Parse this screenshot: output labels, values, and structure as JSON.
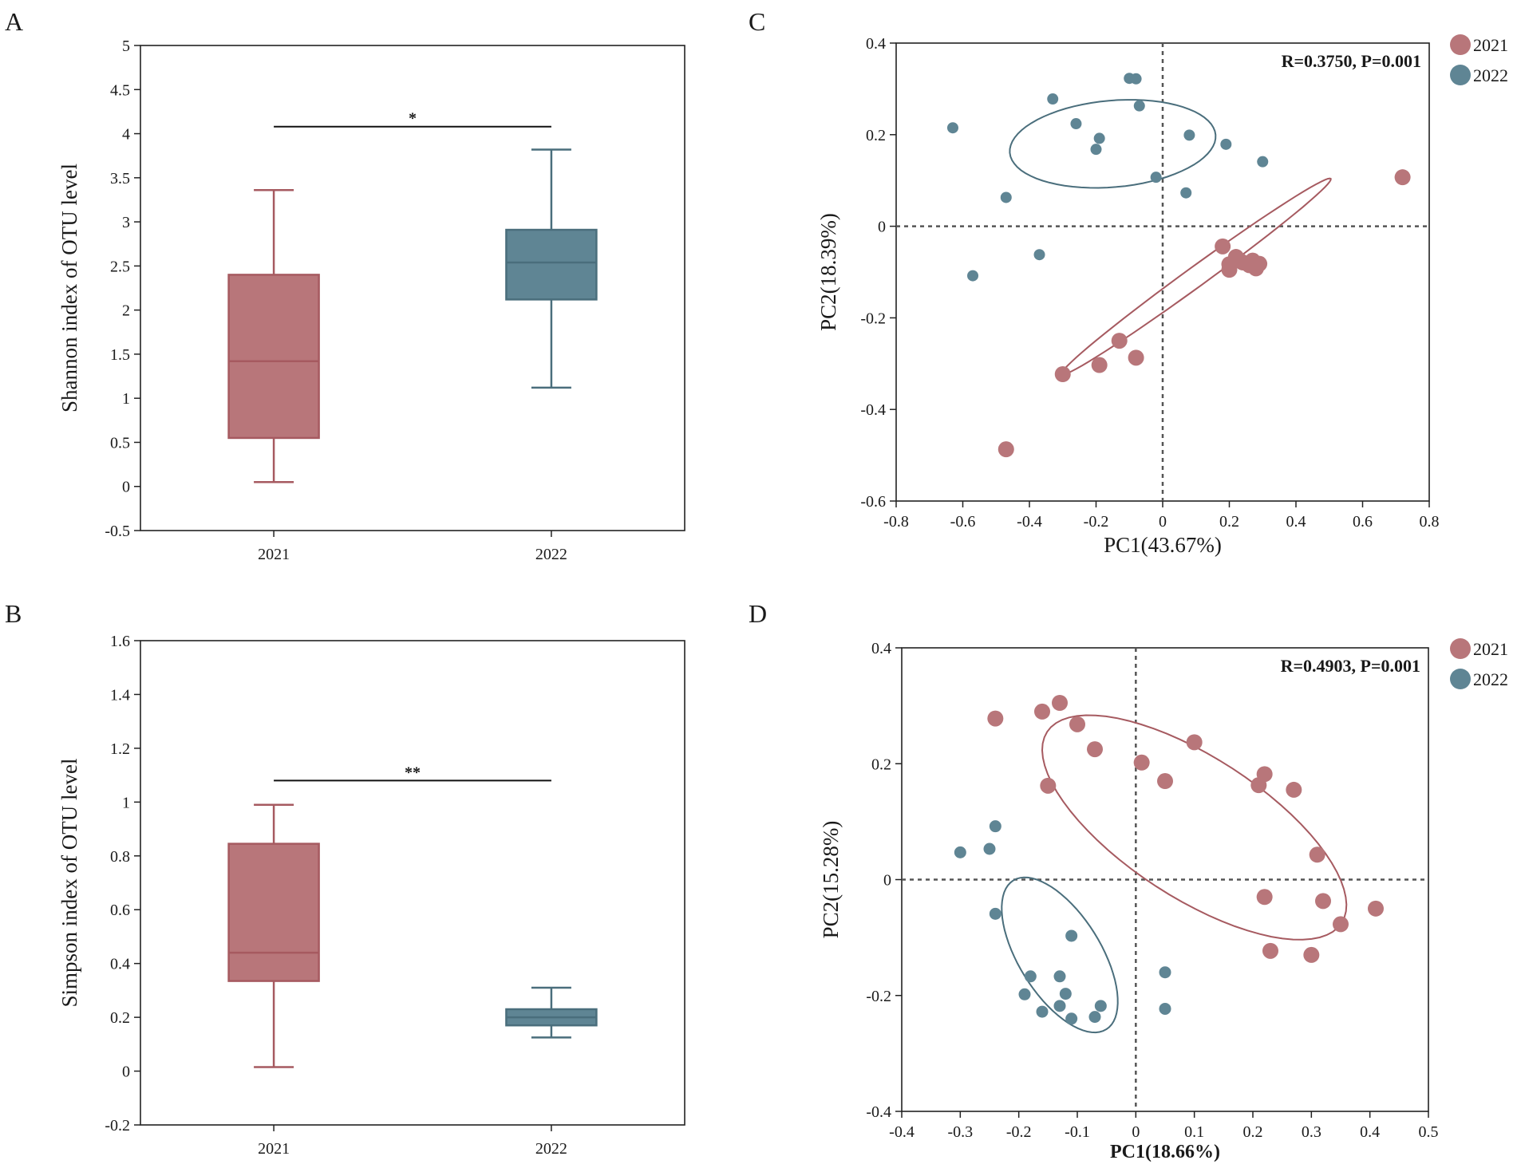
{
  "colors": {
    "group_2021": "#b8767a",
    "group_2021_stroke": "#a65a60",
    "group_2022": "#5f8594",
    "group_2022_stroke": "#4a6e7c",
    "axis": "#222222",
    "refline": "#555555"
  },
  "chart_data": [
    {
      "panel": "A",
      "type": "box",
      "ylabel": "Shannon index of OTU level",
      "xlabel": "",
      "ylim": [
        -0.5,
        5
      ],
      "yticks": [
        -0.5,
        0,
        0.5,
        1,
        1.5,
        2,
        2.5,
        3,
        3.5,
        4,
        4.5,
        5
      ],
      "yticklabels": [
        "-0.5",
        "0",
        "0.5",
        "1",
        "1.5",
        "2",
        "2.5",
        "3",
        "3.5",
        "4",
        "4.5",
        "5"
      ],
      "categories": [
        "2021",
        "2022"
      ],
      "boxes": [
        {
          "group": "2021",
          "min": 0.05,
          "q1": 0.55,
          "median": 1.42,
          "q3": 2.4,
          "max": 3.36
        },
        {
          "group": "2022",
          "min": 1.12,
          "q1": 2.12,
          "median": 2.54,
          "q3": 2.91,
          "max": 3.82
        }
      ],
      "significance": {
        "label": "*",
        "y": 4.08
      }
    },
    {
      "panel": "B",
      "type": "box",
      "ylabel": "Simpson index of OTU level",
      "xlabel": "",
      "ylim": [
        -0.2,
        1.6
      ],
      "yticks": [
        -0.2,
        0,
        0.2,
        0.4,
        0.6,
        0.8,
        1,
        1.2,
        1.4,
        1.6
      ],
      "yticklabels": [
        "-0.2",
        "0",
        "0.2",
        "0.4",
        "0.6",
        "0.8",
        "1",
        "1.2",
        "1.4",
        "1.6"
      ],
      "categories": [
        "2021",
        "2022"
      ],
      "boxes": [
        {
          "group": "2021",
          "min": 0.015,
          "q1": 0.335,
          "median": 0.44,
          "q3": 0.845,
          "max": 0.99
        },
        {
          "group": "2022",
          "min": 0.125,
          "q1": 0.17,
          "median": 0.2,
          "q3": 0.23,
          "max": 0.31
        }
      ],
      "significance": {
        "label": "**",
        "y": 1.08
      }
    },
    {
      "panel": "C",
      "type": "scatter",
      "xlabel": "PC1(43.67%)",
      "ylabel": "PC2(18.39%)",
      "xlim": [
        -0.8,
        0.8
      ],
      "ylim": [
        -0.6,
        0.4
      ],
      "xticks": [
        -0.8,
        -0.6,
        -0.4,
        -0.2,
        0,
        0.2,
        0.4,
        0.6,
        0.8
      ],
      "xticklabels": [
        "-0.8",
        "-0.6",
        "-0.4",
        "-0.2",
        "0",
        "0.2",
        "0.4",
        "0.6",
        "0.8"
      ],
      "yticks": [
        -0.6,
        -0.4,
        -0.2,
        0,
        0.2,
        0.4
      ],
      "yticklabels": [
        "-0.6",
        "-0.4",
        "-0.2",
        "0",
        "0.2",
        "0.4"
      ],
      "stats": "R=0.3750, P=0.001",
      "legend": [
        "2021",
        "2022"
      ],
      "series": [
        {
          "name": "2021",
          "points": [
            [
              0.72,
              0.107
            ],
            [
              0.18,
              -0.044
            ],
            [
              0.22,
              -0.067
            ],
            [
              0.2,
              -0.083
            ],
            [
              0.24,
              -0.079
            ],
            [
              0.27,
              -0.075
            ],
            [
              0.29,
              -0.082
            ],
            [
              0.26,
              -0.085
            ],
            [
              0.28,
              -0.092
            ],
            [
              0.2,
              -0.095
            ],
            [
              0.23,
              -0.074
            ],
            [
              -0.13,
              -0.25
            ],
            [
              -0.08,
              -0.287
            ],
            [
              -0.19,
              -0.303
            ],
            [
              -0.3,
              -0.323
            ],
            [
              -0.47,
              -0.487
            ]
          ],
          "ellipse": {
            "cx": 0.1,
            "cy": -0.11,
            "rx": 0.5,
            "ry": 0.03,
            "angle_data": 36
          }
        },
        {
          "name": "2022",
          "points": [
            [
              -0.63,
              0.215
            ],
            [
              -0.33,
              0.278
            ],
            [
              -0.1,
              0.323
            ],
            [
              -0.08,
              0.322
            ],
            [
              -0.07,
              0.263
            ],
            [
              -0.26,
              0.224
            ],
            [
              -0.19,
              0.192
            ],
            [
              -0.2,
              0.168
            ],
            [
              0.08,
              0.199
            ],
            [
              0.19,
              0.179
            ],
            [
              0.3,
              0.141
            ],
            [
              -0.02,
              0.107
            ],
            [
              0.07,
              0.073
            ],
            [
              -0.47,
              0.063
            ],
            [
              -0.37,
              -0.062
            ],
            [
              -0.57,
              -0.108
            ]
          ],
          "ellipse": {
            "cx": -0.15,
            "cy": 0.18,
            "rx": 0.31,
            "ry": 0.13,
            "angle_data": 5
          }
        }
      ]
    },
    {
      "panel": "D",
      "type": "scatter",
      "xlabel": "PC1(18.66%)",
      "ylabel": "PC2(15.28%)",
      "xlim": [
        -0.4,
        0.5
      ],
      "ylim": [
        -0.4,
        0.4
      ],
      "xticks": [
        -0.4,
        -0.3,
        -0.2,
        -0.1,
        0,
        0.1,
        0.2,
        0.3,
        0.4,
        0.5
      ],
      "xticklabels": [
        "-0.4",
        "-0.3",
        "-0.2",
        "-0.1",
        "0",
        "0.1",
        "0.2",
        "0.3",
        "0.4",
        "0.5"
      ],
      "yticks": [
        -0.4,
        -0.2,
        0,
        0.2,
        0.4
      ],
      "yticklabels": [
        "-0.4",
        "-0.2",
        "0",
        "0.2",
        "0.4"
      ],
      "stats": "R=0.4903, P=0.001",
      "legend": [
        "2021",
        "2022"
      ],
      "series": [
        {
          "name": "2021",
          "points": [
            [
              -0.13,
              0.305
            ],
            [
              -0.16,
              0.29
            ],
            [
              -0.24,
              0.278
            ],
            [
              -0.1,
              0.268
            ],
            [
              -0.07,
              0.225
            ],
            [
              0.1,
              0.237
            ],
            [
              0.01,
              0.202
            ],
            [
              0.05,
              0.17
            ],
            [
              -0.15,
              0.162
            ],
            [
              0.22,
              0.182
            ],
            [
              0.21,
              0.163
            ],
            [
              0.27,
              0.155
            ],
            [
              0.31,
              0.043
            ],
            [
              0.22,
              -0.03
            ],
            [
              0.32,
              -0.037
            ],
            [
              0.41,
              -0.05
            ],
            [
              0.35,
              -0.077
            ],
            [
              0.23,
              -0.123
            ],
            [
              0.3,
              -0.13
            ]
          ],
          "ellipse": {
            "cx": 0.1,
            "cy": 0.09,
            "rx": 0.3,
            "ry": 0.12,
            "angle_data": -33
          }
        },
        {
          "name": "2022",
          "points": [
            [
              -0.24,
              0.092
            ],
            [
              -0.3,
              0.047
            ],
            [
              -0.25,
              0.053
            ],
            [
              -0.24,
              -0.059
            ],
            [
              -0.11,
              -0.097
            ],
            [
              -0.18,
              -0.167
            ],
            [
              -0.13,
              -0.167
            ],
            [
              0.05,
              -0.16
            ],
            [
              -0.12,
              -0.197
            ],
            [
              -0.19,
              -0.198
            ],
            [
              -0.13,
              -0.218
            ],
            [
              -0.06,
              -0.218
            ],
            [
              0.05,
              -0.223
            ],
            [
              -0.16,
              -0.228
            ],
            [
              -0.07,
              -0.237
            ],
            [
              -0.11,
              -0.24
            ]
          ],
          "ellipse": {
            "cx": -0.13,
            "cy": -0.13,
            "rx": 0.15,
            "ry": 0.07,
            "angle_data": -58
          }
        }
      ]
    }
  ],
  "panel_labels": [
    "A",
    "B",
    "C",
    "D"
  ]
}
